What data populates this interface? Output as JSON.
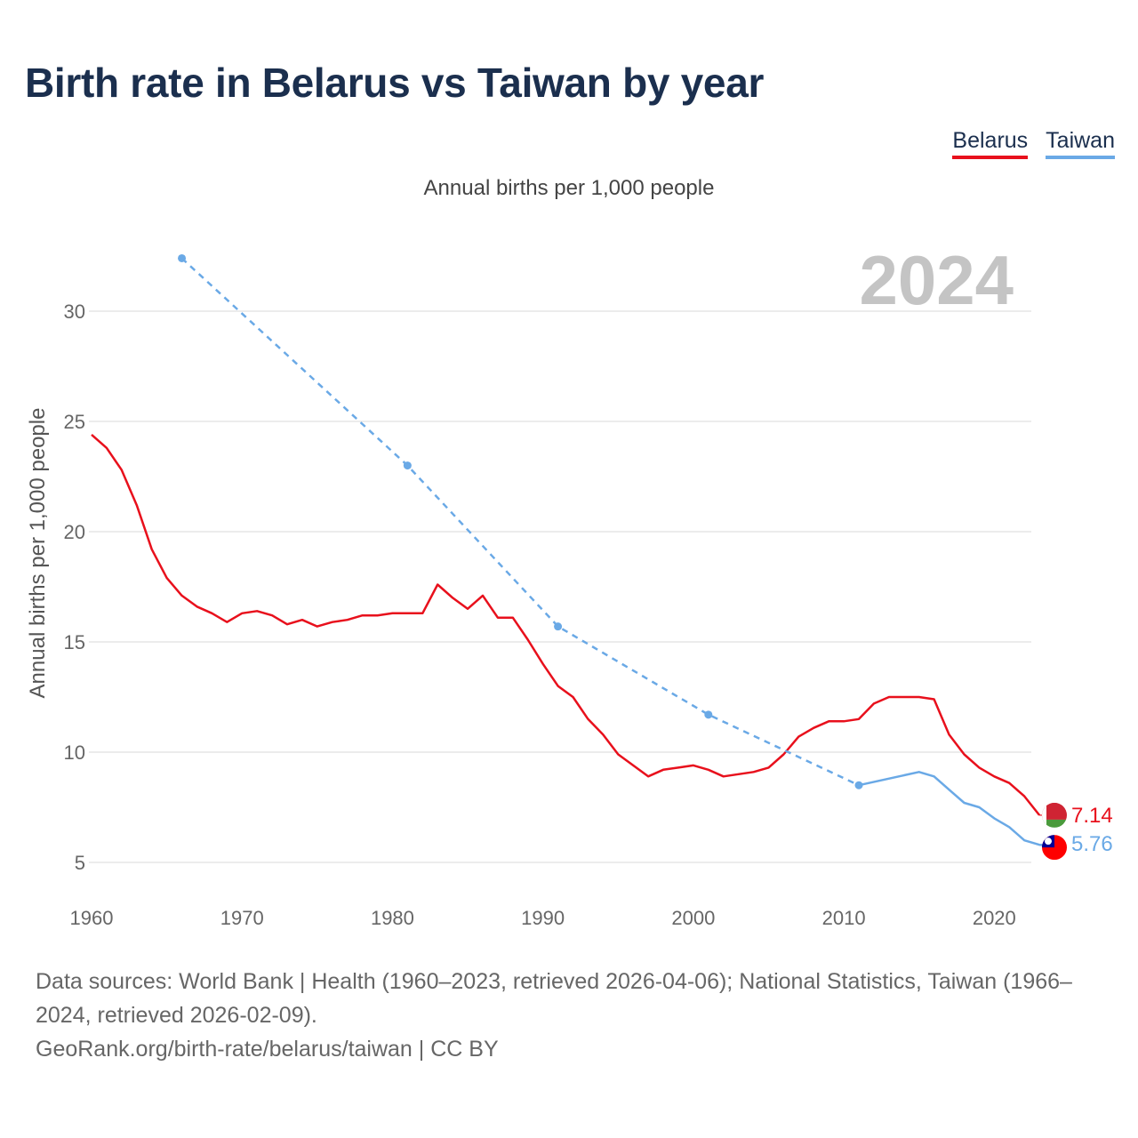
{
  "header": {
    "title": "Birth rate in Belarus vs Taiwan by year",
    "subtitle": "Annual births per 1,000 people"
  },
  "legend": {
    "belarus": "Belarus",
    "taiwan": "Taiwan"
  },
  "chart_data": {
    "type": "line",
    "title": "Birth rate in Belarus vs Taiwan by year",
    "ylabel": "Annual births per 1,000 people",
    "xlabel": "",
    "year_label": "2024",
    "xlim": [
      1960,
      2024
    ],
    "ylim": [
      4,
      33
    ],
    "x_ticks": [
      1960,
      1970,
      1980,
      1990,
      2000,
      2010,
      2020
    ],
    "y_ticks": [
      5,
      10,
      15,
      20,
      25,
      30
    ],
    "grid": true,
    "series": [
      {
        "name": "Belarus",
        "color": "#e8101c",
        "style": "solid",
        "end_label": "7.14",
        "end_value": 7.14,
        "flag": "belarus-flag",
        "points": [
          [
            1960,
            24.4
          ],
          [
            1961,
            23.8
          ],
          [
            1962,
            22.8
          ],
          [
            1963,
            21.2
          ],
          [
            1964,
            19.2
          ],
          [
            1965,
            17.9
          ],
          [
            1966,
            17.1
          ],
          [
            1967,
            16.6
          ],
          [
            1968,
            16.3
          ],
          [
            1969,
            15.9
          ],
          [
            1970,
            16.3
          ],
          [
            1971,
            16.4
          ],
          [
            1972,
            16.2
          ],
          [
            1973,
            15.8
          ],
          [
            1974,
            16.0
          ],
          [
            1975,
            15.7
          ],
          [
            1976,
            15.9
          ],
          [
            1977,
            16.0
          ],
          [
            1978,
            16.2
          ],
          [
            1979,
            16.2
          ],
          [
            1980,
            16.3
          ],
          [
            1981,
            16.3
          ],
          [
            1982,
            16.3
          ],
          [
            1983,
            17.6
          ],
          [
            1984,
            17.0
          ],
          [
            1985,
            16.5
          ],
          [
            1986,
            17.1
          ],
          [
            1987,
            16.1
          ],
          [
            1988,
            16.1
          ],
          [
            1989,
            15.1
          ],
          [
            1990,
            14.0
          ],
          [
            1991,
            13.0
          ],
          [
            1992,
            12.5
          ],
          [
            1993,
            11.5
          ],
          [
            1994,
            10.8
          ],
          [
            1995,
            9.9
          ],
          [
            1996,
            9.4
          ],
          [
            1997,
            8.9
          ],
          [
            1998,
            9.2
          ],
          [
            1999,
            9.3
          ],
          [
            2000,
            9.4
          ],
          [
            2001,
            9.2
          ],
          [
            2002,
            8.9
          ],
          [
            2003,
            9.0
          ],
          [
            2004,
            9.1
          ],
          [
            2005,
            9.3
          ],
          [
            2006,
            9.9
          ],
          [
            2007,
            10.7
          ],
          [
            2008,
            11.1
          ],
          [
            2009,
            11.4
          ],
          [
            2010,
            11.4
          ],
          [
            2011,
            11.5
          ],
          [
            2012,
            12.2
          ],
          [
            2013,
            12.5
          ],
          [
            2014,
            12.5
          ],
          [
            2015,
            12.5
          ],
          [
            2016,
            12.4
          ],
          [
            2017,
            10.8
          ],
          [
            2018,
            9.9
          ],
          [
            2019,
            9.3
          ],
          [
            2020,
            8.9
          ],
          [
            2021,
            8.6
          ],
          [
            2022,
            8.0
          ],
          [
            2023,
            7.14
          ]
        ]
      },
      {
        "name": "Taiwan",
        "color": "#6aa9e6",
        "style": "dashed-then-solid",
        "end_label": "5.76",
        "end_value": 5.76,
        "flag": "taiwan-flag",
        "points": [
          [
            1966,
            32.4
          ],
          [
            1981,
            23.0
          ],
          [
            1991,
            15.7
          ],
          [
            2001,
            11.7
          ],
          [
            2011,
            8.5
          ],
          [
            2015,
            9.1
          ],
          [
            2016,
            8.9
          ],
          [
            2017,
            8.3
          ],
          [
            2018,
            7.7
          ],
          [
            2019,
            7.5
          ],
          [
            2020,
            7.0
          ],
          [
            2021,
            6.6
          ],
          [
            2022,
            6.0
          ],
          [
            2023,
            5.8
          ],
          [
            2024,
            5.76
          ]
        ],
        "marked_points": [
          1966,
          1981,
          1991,
          2001,
          2011
        ]
      }
    ]
  },
  "footer": {
    "sources": "Data sources: World Bank | Health (1960–2023, retrieved 2026-04-06); National Statistics, Taiwan (1966–2024, retrieved 2026-02-09).",
    "attribution": "GeoRank.org/birth-rate/belarus/taiwan | CC BY"
  }
}
